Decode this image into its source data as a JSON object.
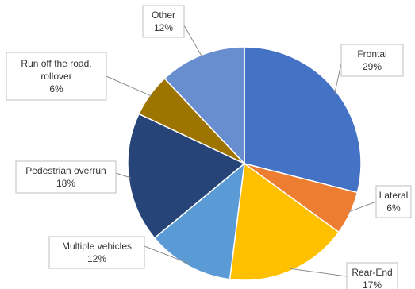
{
  "chart_data": {
    "type": "pie",
    "title": "",
    "slices": [
      {
        "label": "Frontal",
        "value": 29,
        "value_label": "29%",
        "color": "#4472C4"
      },
      {
        "label": "Lateral",
        "value": 6,
        "value_label": "6%",
        "color": "#ED7D31"
      },
      {
        "label": "Rear-End",
        "value": 17,
        "value_label": "17%",
        "color": "#FFC000"
      },
      {
        "label": "Multiple vehicles",
        "value": 12,
        "value_label": "12%",
        "color": "#5B9BD5"
      },
      {
        "label": "Pedestrian overrun",
        "value": 18,
        "value_label": "18%",
        "color": "#264478"
      },
      {
        "label": "Run off the road, rollover",
        "value": 6,
        "value_label": "6%",
        "color": "#9E7400"
      },
      {
        "label": "Other",
        "value": 12,
        "value_label": "12%",
        "color": "#698ED0"
      }
    ],
    "start_angle_deg": 0,
    "direction": "clockwise",
    "legend": "none",
    "labels": "callouts"
  }
}
